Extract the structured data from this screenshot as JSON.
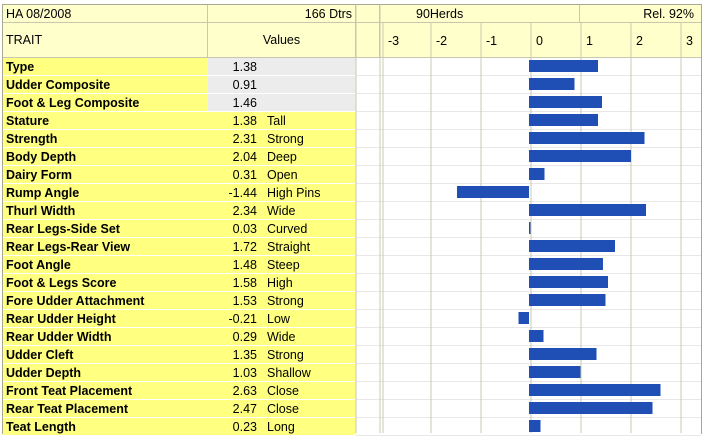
{
  "header": {
    "sire_proof": "HA 08/2008",
    "daughters": "166 Dtrs",
    "herds": "90Herds",
    "reliability": "Rel. 92%",
    "trait_heading": "TRAIT",
    "values_heading": "Values"
  },
  "colors": {
    "header_bg": "#ffffcc",
    "trait_bg": "#ffff80",
    "composite_value_bg": "#ececec",
    "bar": "#1f4fb4",
    "grid": "#c8c8b0"
  },
  "chart_data": {
    "type": "bar",
    "orientation": "horizontal",
    "xlim": [
      -3,
      3
    ],
    "xticks": [
      "-3",
      "-2",
      "-1",
      "0",
      "1",
      "2",
      "3"
    ],
    "grid": true,
    "categories": [
      "Type",
      "Udder Composite",
      "Foot & Leg Composite",
      "Stature",
      "Strength",
      "Body Depth",
      "Dairy Form",
      "Rump Angle",
      "Thurl Width",
      "Rear Legs-Side Set",
      "Rear Legs-Rear View",
      "Foot Angle",
      "Foot & Legs Score",
      "Fore Udder Attachment",
      "Rear Udder Height",
      "Rear Udder Width",
      "Udder Cleft",
      "Udder Depth",
      "Front Teat Placement",
      "Rear Teat Placement",
      "Teat Length"
    ],
    "values": [
      1.38,
      0.91,
      1.46,
      1.38,
      2.31,
      2.04,
      0.31,
      -1.44,
      2.34,
      0.03,
      1.72,
      1.48,
      1.58,
      1.53,
      -0.21,
      0.29,
      1.35,
      1.03,
      2.63,
      2.47,
      0.23
    ],
    "value_labels": [
      "1.38",
      "0.91",
      "1.46",
      "1.38",
      "2.31",
      "2.04",
      "0.31",
      "-1.44",
      "2.34",
      "0.03",
      "1.72",
      "1.48",
      "1.58",
      "1.53",
      "-0.21",
      "0.29",
      "1.35",
      "1.03",
      "2.63",
      "2.47",
      "0.23"
    ],
    "descriptors": [
      "",
      "",
      "",
      "Tall",
      "Strong",
      "Deep",
      "Open",
      "High Pins",
      "Wide",
      "Curved",
      "Straight",
      "Steep",
      "High",
      "Strong",
      "Low",
      "Wide",
      "Strong",
      "Shallow",
      "Close",
      "Close",
      "Long"
    ]
  }
}
